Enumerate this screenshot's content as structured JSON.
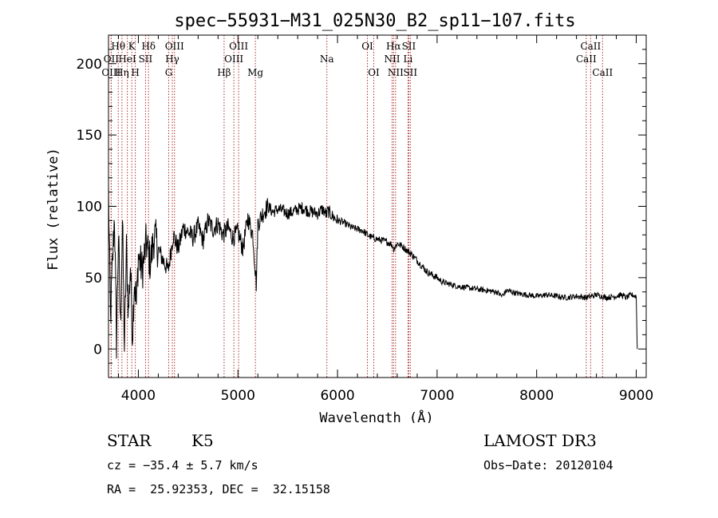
{
  "chart_data": {
    "type": "line",
    "title": "spec−55931−M31_025N30_B2_sp11−107.fits",
    "xlabel": "Wavelength (Å)",
    "ylabel": "Flux (relative)",
    "xlim": [
      3700,
      9100
    ],
    "ylim": [
      -20,
      220
    ],
    "xticks": [
      4000,
      5000,
      6000,
      7000,
      8000,
      9000
    ],
    "yticks": [
      0,
      50,
      100,
      150,
      200
    ],
    "series": [
      {
        "name": "flux",
        "color": "#000000",
        "x": [
          3700,
          3720,
          3740,
          3760,
          3780,
          3800,
          3820,
          3840,
          3860,
          3880,
          3900,
          3920,
          3940,
          3960,
          3980,
          4000,
          4040,
          4080,
          4120,
          4160,
          4200,
          4250,
          4300,
          4350,
          4400,
          4450,
          4500,
          4550,
          4600,
          4650,
          4700,
          4750,
          4800,
          4850,
          4900,
          4950,
          5000,
          5050,
          5100,
          5150,
          5170,
          5185,
          5200,
          5250,
          5300,
          5350,
          5400,
          5450,
          5500,
          5550,
          5600,
          5650,
          5700,
          5750,
          5800,
          5850,
          5890,
          5900,
          5950,
          6000,
          6050,
          6100,
          6150,
          6200,
          6250,
          6300,
          6350,
          6400,
          6450,
          6500,
          6550,
          6563,
          6600,
          6650,
          6700,
          6750,
          6800,
          6850,
          6900,
          6950,
          7000,
          7050,
          7100,
          7150,
          7200,
          7300,
          7400,
          7500,
          7600,
          7650,
          7700,
          7800,
          7900,
          8000,
          8100,
          8200,
          8300,
          8400,
          8500,
          8600,
          8700,
          8800,
          8850,
          8900,
          8950,
          9000,
          9010
        ],
        "y": [
          110,
          20,
          60,
          95,
          5,
          80,
          15,
          90,
          0,
          70,
          25,
          60,
          10,
          50,
          30,
          65,
          55,
          75,
          60,
          80,
          70,
          62,
          55,
          80,
          70,
          85,
          82,
          78,
          86,
          76,
          90,
          84,
          88,
          80,
          85,
          78,
          82,
          70,
          92,
          80,
          60,
          45,
          88,
          95,
          100,
          96,
          98,
          97,
          95,
          96,
          98,
          99,
          97,
          96,
          95,
          98,
          94,
          97,
          93,
          90,
          89,
          87,
          85,
          84,
          83,
          80,
          78,
          77,
          76,
          75,
          73,
          70,
          74,
          72,
          69,
          66,
          62,
          58,
          54,
          52,
          50,
          47,
          46,
          45,
          44,
          43,
          42,
          41,
          40,
          37,
          41,
          39,
          38,
          37,
          38,
          37,
          36,
          37,
          36,
          38,
          36,
          37,
          38,
          36,
          38,
          37,
          0
        ]
      }
    ],
    "spectral_lines": [
      {
        "label": "Hθ",
        "x": 3798,
        "row": 1
      },
      {
        "label": "OII",
        "x": 3727,
        "row": 2
      },
      {
        "label": "OIII",
        "x": 3727,
        "row": 3
      },
      {
        "label": "K",
        "x": 3934,
        "row": 1
      },
      {
        "label": "HeI",
        "x": 3889,
        "row": 2
      },
      {
        "label": "Hη",
        "x": 3835,
        "row": 3
      },
      {
        "label": "Hδ",
        "x": 4102,
        "row": 1
      },
      {
        "label": "SII",
        "x": 4072,
        "row": 2
      },
      {
        "label": "H",
        "x": 3969,
        "row": 3
      },
      {
        "label": "OIII",
        "x": 4363,
        "row": 1
      },
      {
        "label": "Hγ",
        "x": 4341,
        "row": 2
      },
      {
        "label": "G",
        "x": 4305,
        "row": 3
      },
      {
        "label": "OIII",
        "x": 5007,
        "row": 1
      },
      {
        "label": "OIII",
        "x": 4959,
        "row": 2
      },
      {
        "label": "Hβ",
        "x": 4861,
        "row": 3
      },
      {
        "label": "Mg",
        "x": 5175,
        "row": 3
      },
      {
        "label": "Na",
        "x": 5893,
        "row": 2
      },
      {
        "label": "OI",
        "x": 6300,
        "row": 1
      },
      {
        "label": "OI",
        "x": 6364,
        "row": 3
      },
      {
        "label": "Hα",
        "x": 6563,
        "row": 1
      },
      {
        "label": "SII",
        "x": 6716,
        "row": 1
      },
      {
        "label": "NII",
        "x": 6548,
        "row": 2
      },
      {
        "label": "Li",
        "x": 6708,
        "row": 2
      },
      {
        "label": "NII",
        "x": 6583,
        "row": 3
      },
      {
        "label": "SII",
        "x": 6731,
        "row": 3
      },
      {
        "label": "CaII",
        "x": 8542,
        "row": 1
      },
      {
        "label": "CaII",
        "x": 8498,
        "row": 2
      },
      {
        "label": "CaII",
        "x": 8662,
        "row": 3
      }
    ]
  },
  "info": {
    "object_class": "STAR",
    "subclass": "K5",
    "cz": "cz = −35.4 ± 5.7 km/s",
    "coords": "RA =  25.92353, DEC =  32.15158",
    "survey": "LAMOST DR3",
    "obs_date": "Obs−Date: 20120104"
  }
}
